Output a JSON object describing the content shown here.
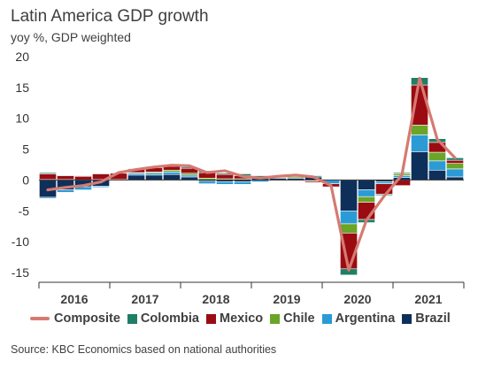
{
  "title": "Latin America GDP growth",
  "subtitle": "yoy %, GDP weighted",
  "source": "Source: KBC Economics based on national authorities",
  "colors": {
    "Brazil": "#0e2f5a",
    "Argentina": "#2b9bd6",
    "Chile": "#6aa528",
    "Mexico": "#9a0c12",
    "Colombia": "#1e7f66",
    "Composite": "#d57a72"
  },
  "chart_data": {
    "type": "bar",
    "stacked": true,
    "title": "Latin America GDP growth",
    "subtitle": "yoy %, GDP weighted",
    "ylim": [
      -15,
      20
    ],
    "yticks": [
      -15,
      -10,
      -5,
      0,
      5,
      10,
      15,
      20
    ],
    "grid": false,
    "legend_position": "bottom",
    "year_labels": [
      "2016",
      "2017",
      "2018",
      "2019",
      "2020",
      "2021"
    ],
    "categories": [
      "2016 Q1",
      "2016 Q2",
      "2016 Q3",
      "2016 Q4",
      "2017 Q1",
      "2017 Q2",
      "2017 Q3",
      "2017 Q4",
      "2018 Q1",
      "2018 Q2",
      "2018 Q3",
      "2018 Q4",
      "2019 Q1",
      "2019 Q2",
      "2019 Q3",
      "2019 Q4",
      "2020 Q1",
      "2020 Q2",
      "2020 Q3",
      "2020 Q4",
      "2021 Q1",
      "2021 Q2",
      "2021 Q3",
      "2021 Q4"
    ],
    "series": [
      {
        "name": "Brazil",
        "values": [
          -2.8,
          -1.6,
          -1.1,
          -1.0,
          0.1,
          0.8,
          0.8,
          0.9,
          0.5,
          -0.2,
          -0.3,
          -0.3,
          0.3,
          0.3,
          0.3,
          0.5,
          0.0,
          -5.0,
          -1.6,
          -0.3,
          0.4,
          4.6,
          1.6,
          0.5
        ]
      },
      {
        "name": "Argentina",
        "values": [
          -0.2,
          -0.4,
          -0.5,
          -0.2,
          0.0,
          0.3,
          0.3,
          0.4,
          0.3,
          -0.4,
          -0.4,
          -0.4,
          -0.3,
          0.0,
          -0.1,
          -0.1,
          -0.6,
          -2.1,
          -1.1,
          -0.3,
          0.3,
          2.7,
          1.5,
          1.3
        ]
      },
      {
        "name": "Chile",
        "values": [
          0.1,
          0.1,
          0.0,
          0.1,
          0.0,
          0.1,
          0.2,
          0.3,
          0.3,
          0.3,
          0.2,
          0.2,
          0.1,
          0.1,
          0.2,
          -0.1,
          0.0,
          -1.5,
          -0.9,
          0.0,
          0.3,
          1.6,
          1.4,
          0.9
        ]
      },
      {
        "name": "Mexico",
        "values": [
          0.9,
          0.6,
          0.6,
          0.9,
          1.0,
          0.6,
          0.7,
          0.6,
          0.8,
          0.9,
          0.7,
          0.5,
          0.0,
          -0.1,
          -0.1,
          -0.2,
          -0.5,
          -5.8,
          -2.8,
          -1.7,
          -0.9,
          6.5,
          1.6,
          0.5
        ]
      },
      {
        "name": "Colombia",
        "values": [
          0.2,
          0.1,
          0.1,
          0.1,
          0.1,
          0.1,
          0.2,
          0.2,
          0.2,
          0.3,
          0.2,
          0.3,
          0.3,
          0.3,
          0.3,
          0.2,
          0.1,
          -1.0,
          -0.5,
          -0.2,
          0.2,
          1.2,
          0.6,
          0.4
        ]
      }
    ],
    "line": {
      "name": "Composite",
      "values": [
        -1.6,
        -1.2,
        -0.9,
        -0.3,
        1.2,
        1.7,
        2.1,
        2.4,
        2.3,
        1.2,
        1.5,
        0.6,
        0.3,
        0.6,
        0.8,
        0.5,
        -0.9,
        -14.6,
        -6.5,
        -2.6,
        0.8,
        16.5,
        6.6,
        3.6
      ]
    }
  },
  "legend": [
    {
      "label": "Composite",
      "type": "line",
      "color_key": "Composite"
    },
    {
      "label": "Colombia",
      "type": "box",
      "color_key": "Colombia"
    },
    {
      "label": "Mexico",
      "type": "box",
      "color_key": "Mexico"
    },
    {
      "label": "Chile",
      "type": "box",
      "color_key": "Chile"
    },
    {
      "label": "Argentina",
      "type": "box",
      "color_key": "Argentina"
    },
    {
      "label": "Brazil",
      "type": "box",
      "color_key": "Brazil"
    }
  ]
}
